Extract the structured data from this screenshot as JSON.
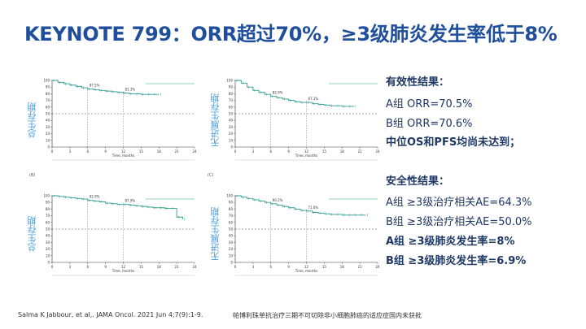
{
  "slide": {
    "title": "KEYNOTE 799：ORR超过70%，≥3级肺炎发生率低于8%",
    "footer_left": "Salma K Jabbour, et al,. JAMA Oncol. 2021 Jun 4;7(9):1-9.",
    "footer_right": "帕博利珠单抗治疗三期不可切除非小细胞肺癌的适应症国内未获批"
  },
  "results": {
    "efficacy_header": "有效性结果：",
    "a_orr": "A组 ORR=70.5%",
    "b_orr": "B组 ORR=70.6%",
    "os_pfs": "中位OS和PFS均尚未达到；",
    "safety_header": "安全性结果：",
    "a_ae": "A组 ≥3级治疗相关AE=64.3%",
    "b_ae": "B组 ≥3级治疗相关AE=50.0%",
    "a_pneum": "A组 ≥3级肺炎发生率=8%",
    "b_pneum": "B组 ≥3级肺炎发生率=6.9%"
  },
  "colors": {
    "title": "#1f4e9c",
    "curve": "#2e9b8f",
    "ylabel": "#4a9fd8",
    "text": "#1f3864"
  },
  "panels": {
    "p1": {
      "ylabel": "总生存期"
    },
    "p2": {
      "ylabel": "无进展生存期"
    },
    "p3": {
      "ylabel": "总生存期",
      "tag": "(B)"
    },
    "p4": {
      "ylabel": "无进展生存期",
      "tag": "(C)"
    }
  },
  "chart_data": [
    {
      "type": "line",
      "ylabel": "总生存期",
      "xlabel": "Time, months",
      "xlim": [
        0,
        24
      ],
      "ylim": [
        0,
        100
      ],
      "x": [
        0,
        1,
        2,
        3,
        4,
        5,
        6,
        7,
        8,
        9,
        10,
        11,
        12,
        13,
        14,
        15,
        16,
        17,
        18
      ],
      "y": [
        100,
        97,
        95,
        93,
        91,
        89,
        87,
        86,
        85,
        84,
        83,
        82,
        81,
        80,
        80,
        79,
        79,
        79,
        79
      ],
      "annotations": [
        "87.5%",
        "81.3%"
      ]
    },
    {
      "type": "line",
      "ylabel": "无进展生存期",
      "xlabel": "Time, months",
      "xlim": [
        0,
        24
      ],
      "ylim": [
        0,
        100
      ],
      "x": [
        0,
        1,
        2,
        3,
        4,
        5,
        6,
        7,
        8,
        9,
        10,
        11,
        12,
        13,
        14,
        15,
        16,
        17,
        18,
        19,
        20
      ],
      "y": [
        100,
        96,
        90,
        85,
        82,
        79,
        76,
        74,
        72,
        70,
        68,
        67,
        67,
        65,
        64,
        63,
        62,
        62,
        61,
        61,
        61
      ],
      "annotations": [
        "82.9%",
        "67.1%"
      ]
    },
    {
      "type": "line",
      "ylabel": "总生存期",
      "xlabel": "Time, months",
      "xlim": [
        0,
        24
      ],
      "ylim": [
        0,
        100
      ],
      "x": [
        0,
        1,
        2,
        3,
        4,
        5,
        6,
        7,
        8,
        9,
        10,
        11,
        12,
        13,
        14,
        15,
        16,
        17,
        18,
        19,
        20,
        21,
        22
      ],
      "y": [
        100,
        99,
        98,
        97,
        96,
        95,
        93,
        92,
        91,
        89,
        88,
        87,
        87,
        86,
        85,
        84,
        83,
        82,
        82,
        81,
        81,
        68,
        65
      ],
      "annotations": [
        "92.9%",
        "87.9%"
      ]
    },
    {
      "type": "line",
      "ylabel": "无进展生存期",
      "xlabel": "Time, months",
      "xlim": [
        0,
        24
      ],
      "ylim": [
        0,
        100
      ],
      "x": [
        0,
        1,
        2,
        3,
        4,
        5,
        6,
        7,
        8,
        9,
        10,
        11,
        12,
        13,
        14,
        15,
        16,
        17,
        18,
        19,
        20,
        21,
        22
      ],
      "y": [
        100,
        98,
        96,
        94,
        92,
        90,
        88,
        86,
        84,
        82,
        80,
        78,
        77,
        75,
        74,
        73,
        72,
        72,
        71,
        71,
        71,
        71,
        71
      ],
      "annotations": [
        "90.2%",
        "71.6%"
      ]
    }
  ]
}
